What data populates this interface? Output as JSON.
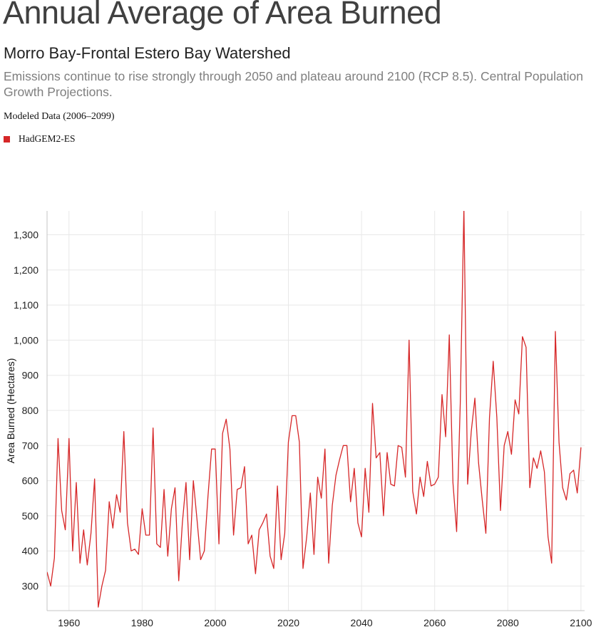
{
  "header": {
    "title": "Annual Average of Area Burned",
    "subtitle": "Morro Bay-Frontal Estero Bay Watershed",
    "description": "Emissions continue to rise strongly through 2050 and plateau around 2100 (RCP 8.5). Central Population Growth Projections.",
    "modeled_label": "Modeled Data (2006–2099)"
  },
  "legend": {
    "items": [
      {
        "label": "HadGEM2-ES",
        "color": "#d62728"
      }
    ]
  },
  "chart_data": {
    "type": "line",
    "title": "Annual Average of Area Burned",
    "ylabel": "Area Burned (Hectares)",
    "xlabel": "",
    "xlim": [
      1954,
      2101
    ],
    "ylim": [
      230,
      1368
    ],
    "grid": true,
    "legend_position": "top-left",
    "x_ticks": [
      1960,
      1980,
      2000,
      2020,
      2040,
      2060,
      2080,
      2100
    ],
    "x_tick_labels": [
      "1960",
      "1980",
      "2000",
      "2020",
      "2040",
      "2060",
      "2080",
      "2100"
    ],
    "y_ticks": [
      300,
      400,
      500,
      600,
      700,
      800,
      900,
      1000,
      1100,
      1200,
      1300
    ],
    "y_tick_labels": [
      "300",
      "400",
      "500",
      "600",
      "700",
      "800",
      "900",
      "1,000",
      "1,100",
      "1,200",
      "1,300"
    ],
    "series": [
      {
        "name": "HadGEM2-ES",
        "color": "#d62728",
        "start_year": 1954,
        "values": [
          340,
          300,
          380,
          720,
          515,
          460,
          720,
          400,
          595,
          365,
          460,
          360,
          450,
          605,
          240,
          300,
          345,
          540,
          465,
          560,
          510,
          740,
          480,
          400,
          405,
          390,
          520,
          445,
          445,
          750,
          420,
          410,
          575,
          385,
          520,
          580,
          315,
          480,
          595,
          375,
          600,
          490,
          375,
          400,
          555,
          690,
          690,
          420,
          735,
          775,
          690,
          445,
          575,
          580,
          640,
          420,
          445,
          335,
          460,
          480,
          505,
          385,
          350,
          585,
          375,
          450,
          710,
          785,
          785,
          710,
          350,
          440,
          565,
          390,
          610,
          550,
          690,
          365,
          530,
          615,
          660,
          700,
          700,
          540,
          635,
          480,
          440,
          635,
          510,
          820,
          665,
          680,
          500,
          680,
          590,
          585,
          700,
          695,
          610,
          1000,
          570,
          505,
          610,
          555,
          655,
          585,
          590,
          610,
          845,
          725,
          1015,
          595,
          455,
          820,
          1375,
          590,
          740,
          835,
          650,
          545,
          450,
          780,
          940,
          780,
          515,
          700,
          740,
          675,
          830,
          790,
          1010,
          980,
          580,
          665,
          635,
          685,
          625,
          440,
          365,
          1025,
          710,
          580,
          545,
          620,
          630,
          565,
          695
        ]
      }
    ]
  }
}
